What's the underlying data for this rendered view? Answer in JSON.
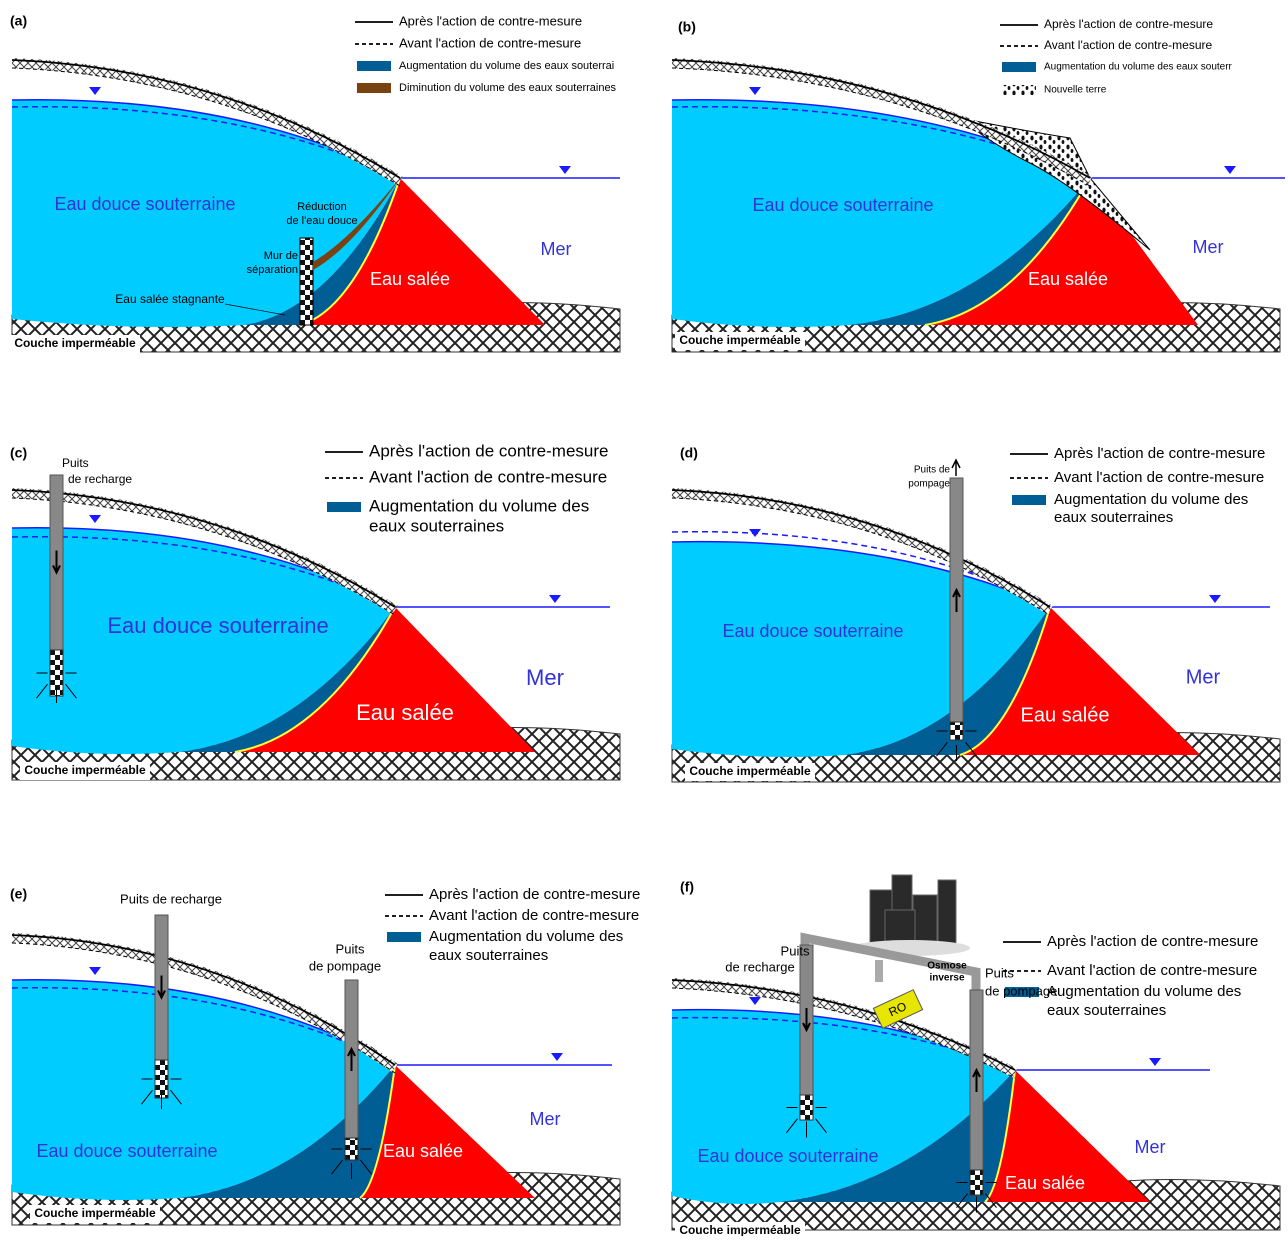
{
  "panels": [
    {
      "label": "(a)",
      "legend": [
        "Après l'action de contre-mesure",
        "Avant l'action de contre-mesure",
        "Augmentation du volume des eaux souterrai",
        "Diminution du volume des eaux souterraines"
      ],
      "annotations": [
        "Eau douce souterraine",
        "Mer",
        "Eau salée",
        "Couche imperméable",
        "Réduction",
        "de l'eau douce",
        "Mur de",
        "séparation",
        "Eau salée stagnante"
      ]
    },
    {
      "label": "(b)",
      "legend": [
        "Après l'action de contre-mesure",
        "Avant l'action de contre-mesure",
        "Augmentation du volume des eaux souterr",
        "Nouvelle terre"
      ],
      "annotations": [
        "Eau douce souterraine",
        "Mer",
        "Eau salée",
        "Couche imperméable"
      ]
    },
    {
      "label": "(c)",
      "legend": [
        "Après l'action de contre-mesure",
        "Avant l'action de contre-mesure",
        "Augmentation du volume des",
        "eaux souterraines"
      ],
      "annotations": [
        "Eau douce souterraine",
        "Mer",
        "Eau salée",
        "Couche imperméable",
        "Puits",
        "de recharge"
      ]
    },
    {
      "label": "(d)",
      "legend": [
        "Après l'action de contre-mesure",
        "Avant l'action de contre-mesure",
        "Augmentation du volume des",
        "eaux souterraines"
      ],
      "annotations": [
        "Eau douce souterraine",
        "Mer",
        "Eau salée",
        "Couche imperméable",
        "Puits de",
        "pompage"
      ]
    },
    {
      "label": "(e)",
      "legend": [
        "Après l'action de contre-mesure",
        "Avant l'action de contre-mesure",
        "Augmentation du volume des",
        "eaux souterraines"
      ],
      "annotations": [
        "Eau douce souterraine",
        "Mer",
        "Eau salée",
        "Couche imperméable",
        "Puits de recharge",
        "Puits",
        "de pompage"
      ]
    },
    {
      "label": "(f)",
      "legend": [
        "Après l'action de contre-mesure",
        "Avant l'action de contre-mesure",
        "Augmentation du volume des",
        "eaux souterraines"
      ],
      "annotations": [
        "Eau douce souterraine",
        "Mer",
        "Eau salée",
        "Couche imperméable",
        "Puits",
        "de recharge",
        "Osmose",
        "inverse",
        "RO",
        "Puits",
        "de pompage"
      ]
    }
  ]
}
